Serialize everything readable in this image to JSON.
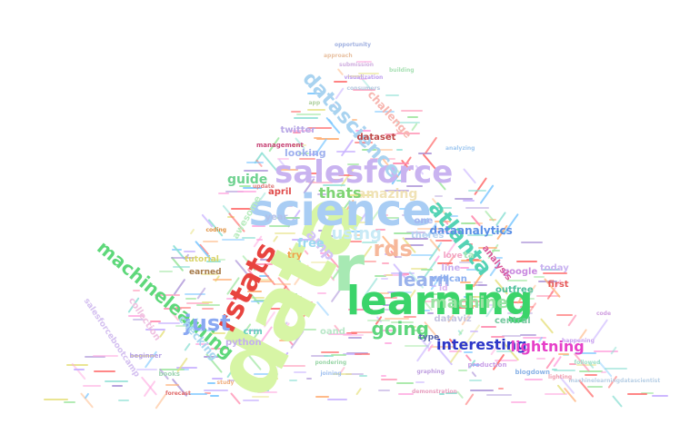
{
  "title": "Word cloud",
  "colors": [
    "#9fe6a0",
    "#c9b3ff",
    "#7ec8ff",
    "#ff8fb1",
    "#ffb27a",
    "#e8e38a",
    "#ff6b6b",
    "#8ee0d4",
    "#b39ddb",
    "#ffa8e0"
  ],
  "words": [
    {
      "text": "data",
      "color": "#d7f5a5"
    },
    {
      "text": "science",
      "color": "#a9cdf4"
    },
    {
      "text": "salesforce",
      "color": "#c9b3f0"
    },
    {
      "text": "r",
      "color": "#a7e9b3"
    },
    {
      "text": "learning",
      "color": "#3bd46a"
    },
    {
      "text": "rstats",
      "color": "#e8443f"
    },
    {
      "text": "machinelearning",
      "color": "#5ed87a"
    },
    {
      "text": "datascience",
      "color": "#a9d3f0"
    },
    {
      "text": "atlanta",
      "color": "#54d3b5"
    },
    {
      "text": "rds",
      "color": "#f6b89b"
    },
    {
      "text": "just",
      "color": "#8aa8f2"
    },
    {
      "text": "going",
      "color": "#5fd67d"
    },
    {
      "text": "learn",
      "color": "#9ab2ec"
    },
    {
      "text": "machine",
      "color": "#9ae3a3"
    },
    {
      "text": "using",
      "color": "#c9eaf6"
    },
    {
      "text": "amp",
      "color": "#d3c4f6"
    },
    {
      "text": "interesting",
      "color": "#2c36c8"
    },
    {
      "text": "lightning",
      "color": "#e640c8"
    },
    {
      "text": "guide",
      "color": "#6fd290"
    },
    {
      "text": "amazing",
      "color": "#f0e2b6"
    },
    {
      "text": "thats",
      "color": "#7fd474"
    },
    {
      "text": "free",
      "color": "#9cd9f0"
    },
    {
      "text": "dataanalytics",
      "color": "#5a8fe6"
    },
    {
      "text": "challenge",
      "color": "#f7b6b0"
    },
    {
      "text": "looking",
      "color": "#9fb0ee"
    },
    {
      "text": "dataset",
      "color": "#c04848"
    },
    {
      "text": "twitter",
      "color": "#b8a8e6"
    },
    {
      "text": "awesome",
      "color": "#b9ecbf"
    },
    {
      "text": "april",
      "color": "#e04a4a"
    },
    {
      "text": "year",
      "color": "#b0c0e8"
    },
    {
      "text": "one",
      "color": "#a3b6f0"
    },
    {
      "text": "theres",
      "color": "#b6d3f0"
    },
    {
      "text": "line",
      "color": "#c9b0f0"
    },
    {
      "text": "today",
      "color": "#c9b3f0"
    },
    {
      "text": "first",
      "color": "#e65c5c"
    },
    {
      "text": "love",
      "color": "#f2a7c4"
    },
    {
      "text": "outfree",
      "color": "#4ec09a"
    },
    {
      "text": "google",
      "color": "#c98ae0"
    },
    {
      "text": "willcan",
      "color": "#8aaef0"
    },
    {
      "text": "analysis",
      "color": "#d95a9c"
    },
    {
      "text": "ta",
      "color": "#a8e6b8"
    },
    {
      "text": "id",
      "color": "#e0b7ef"
    },
    {
      "text": "try",
      "color": "#f0a04a"
    },
    {
      "text": "earned",
      "color": "#a67a4a"
    },
    {
      "text": "tutorial",
      "color": "#d9d46a"
    },
    {
      "text": "python",
      "color": "#c4b0ee"
    },
    {
      "text": "checking",
      "color": "#a8d6f0"
    },
    {
      "text": "collection",
      "color": "#efc0e0"
    },
    {
      "text": "crm",
      "color": "#6ad0c0"
    },
    {
      "text": "oand",
      "color": "#b9e7c8"
    },
    {
      "text": "dataviz",
      "color": "#c4c4e0"
    },
    {
      "text": "central",
      "color": "#76c89f"
    },
    {
      "text": "type",
      "color": "#5a6ab0"
    },
    {
      "text": "salesforcebootcamp",
      "color": "#d4c0f0"
    },
    {
      "text": "management",
      "color": "#c84a7a"
    },
    {
      "text": "coding",
      "color": "#e09040"
    },
    {
      "text": "beginner",
      "color": "#b4a0e6"
    },
    {
      "text": "books",
      "color": "#a0d6b4"
    },
    {
      "text": "production",
      "color": "#c9a0e8"
    },
    {
      "text": "blogdown",
      "color": "#8ab2e6"
    },
    {
      "text": "demonstration",
      "color": "#e8a0c0"
    },
    {
      "text": "machinelearningdatascientist",
      "color": "#b9d0e6"
    },
    {
      "text": "forecast",
      "color": "#e06a6a"
    },
    {
      "text": "graphing",
      "color": "#c0a0e0"
    },
    {
      "text": "joining",
      "color": "#a0c0f0"
    },
    {
      "text": "pondering",
      "color": "#9ad6a8"
    },
    {
      "text": "study",
      "color": "#f0b080"
    },
    {
      "text": "happening",
      "color": "#c8a0f0"
    },
    {
      "text": "followed",
      "color": "#a0e0c8"
    },
    {
      "text": "lighting",
      "color": "#f0a0b0"
    },
    {
      "text": "code",
      "color": "#d0a0e0"
    },
    {
      "text": "analyzing",
      "color": "#a0c8f0"
    },
    {
      "text": "update",
      "color": "#e08080"
    },
    {
      "text": "app",
      "color": "#b0d0a0"
    },
    {
      "text": "submission",
      "color": "#d0b0e0"
    },
    {
      "text": "visualization",
      "color": "#c0a0f0"
    },
    {
      "text": "consumers",
      "color": "#b4c8e0"
    },
    {
      "text": "building",
      "color": "#a8e0b4"
    },
    {
      "text": "approach",
      "color": "#e8c0a0"
    },
    {
      "text": "opportunity",
      "color": "#a0b0e0"
    }
  ]
}
